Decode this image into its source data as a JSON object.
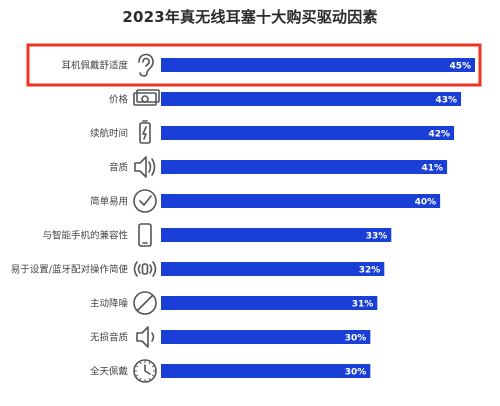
{
  "chart_data": {
    "type": "bar",
    "orientation": "horizontal",
    "title": "2023年真无线耳塞十大购买驱动因素",
    "categories": [
      "耳机佩戴舒适度",
      "价格",
      "续航时间",
      "音质",
      "简单易用",
      "与智能手机的兼容性",
      "易于设置/蓝牙配对操作简便",
      "主动降噪",
      "无损音质",
      "全天佩戴"
    ],
    "values": [
      45,
      43,
      42,
      41,
      40,
      33,
      32,
      31,
      30,
      30
    ],
    "value_labels": [
      "45%",
      "43%",
      "42%",
      "41%",
      "40%",
      "33%",
      "32%",
      "31%",
      "30%",
      "30%"
    ],
    "icons": [
      "ear-icon",
      "banknote-icon",
      "battery-icon",
      "speaker-wave-icon",
      "checkmark-circle-icon",
      "smartphone-icon",
      "wireless-signal-icon",
      "no-sound-icon",
      "speaker-icon",
      "clock-icon"
    ],
    "highlight_index": 0,
    "xlim": [
      0,
      45
    ],
    "grid": false,
    "legend": "none",
    "colors": {
      "bar": "#1a3fd6",
      "highlight_border": "#ee3322",
      "icon": "#555555",
      "label": "#ffffff"
    }
  }
}
